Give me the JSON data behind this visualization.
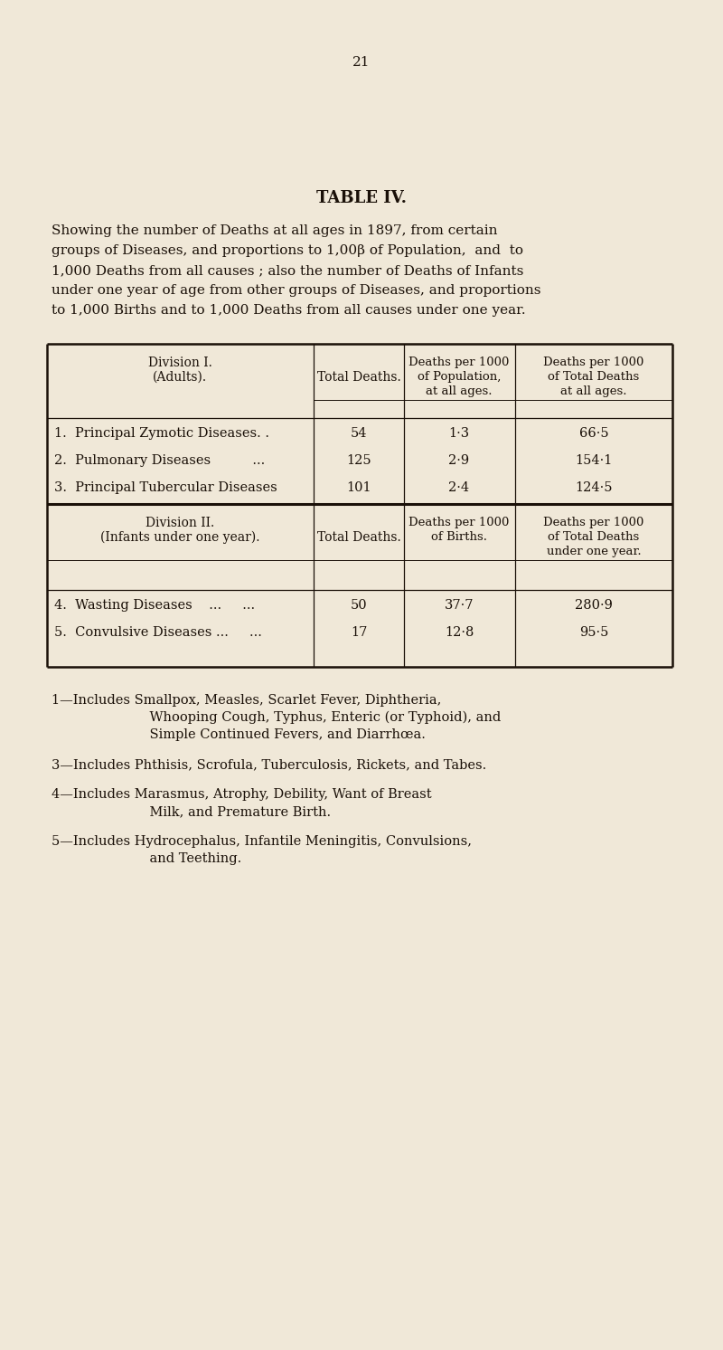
{
  "page_number": "21",
  "bg_color": "#f0e8d8",
  "text_color": "#1a1008",
  "title": "TABLE IV.",
  "subtitle_lines": [
    "Showing the number of Deaths at all ages in 1897, from certain",
    "groups of Diseases, and proportions to 1,00β of Population,  and  to",
    "1,000 Deaths from all causes ; also the number of Deaths of Infants",
    "under one year of age from other groups of Diseases, and proportions",
    "to 1,000 Births and to 1,000 Deaths from all causes under one year."
  ],
  "div1_rows": [
    [
      "1.  Principal Zymotic Diseases. .",
      "54",
      "1·3",
      "66·5"
    ],
    [
      "2.  Pulmonary Diseases          ...",
      "125",
      "2·9",
      "154·1"
    ],
    [
      "3.  Principal Tubercular Diseases",
      "101",
      "2·4",
      "124·5"
    ]
  ],
  "div2_rows": [
    [
      "4.  Wasting Diseases    ...     ...",
      "50",
      "37·7",
      "280·9"
    ],
    [
      "5.  Convulsive Diseases ...     ...",
      "17",
      "12·8",
      "95·5"
    ]
  ],
  "footnote_lines": [
    [
      "1—Includes Smallpox, Measles, Scarlet Fever, Diphtheria,",
      "    Whooping Cough, Typhus, Enteric (or Typhoid), and",
      "    Simple Continued Fevers, and Diarrhœa."
    ],
    [
      "3—Includes Phthisis, Scrofula, Tuberculosis, Rickets, and Tabes."
    ],
    [
      "4—Includes Marasmus, Atrophy, Debility, Want of Breast",
      "    Milk, and Premature Birth."
    ],
    [
      "5—Includes Hydrocephalus, Infantile Meningitis, Convulsions,",
      "    and Teething."
    ]
  ]
}
